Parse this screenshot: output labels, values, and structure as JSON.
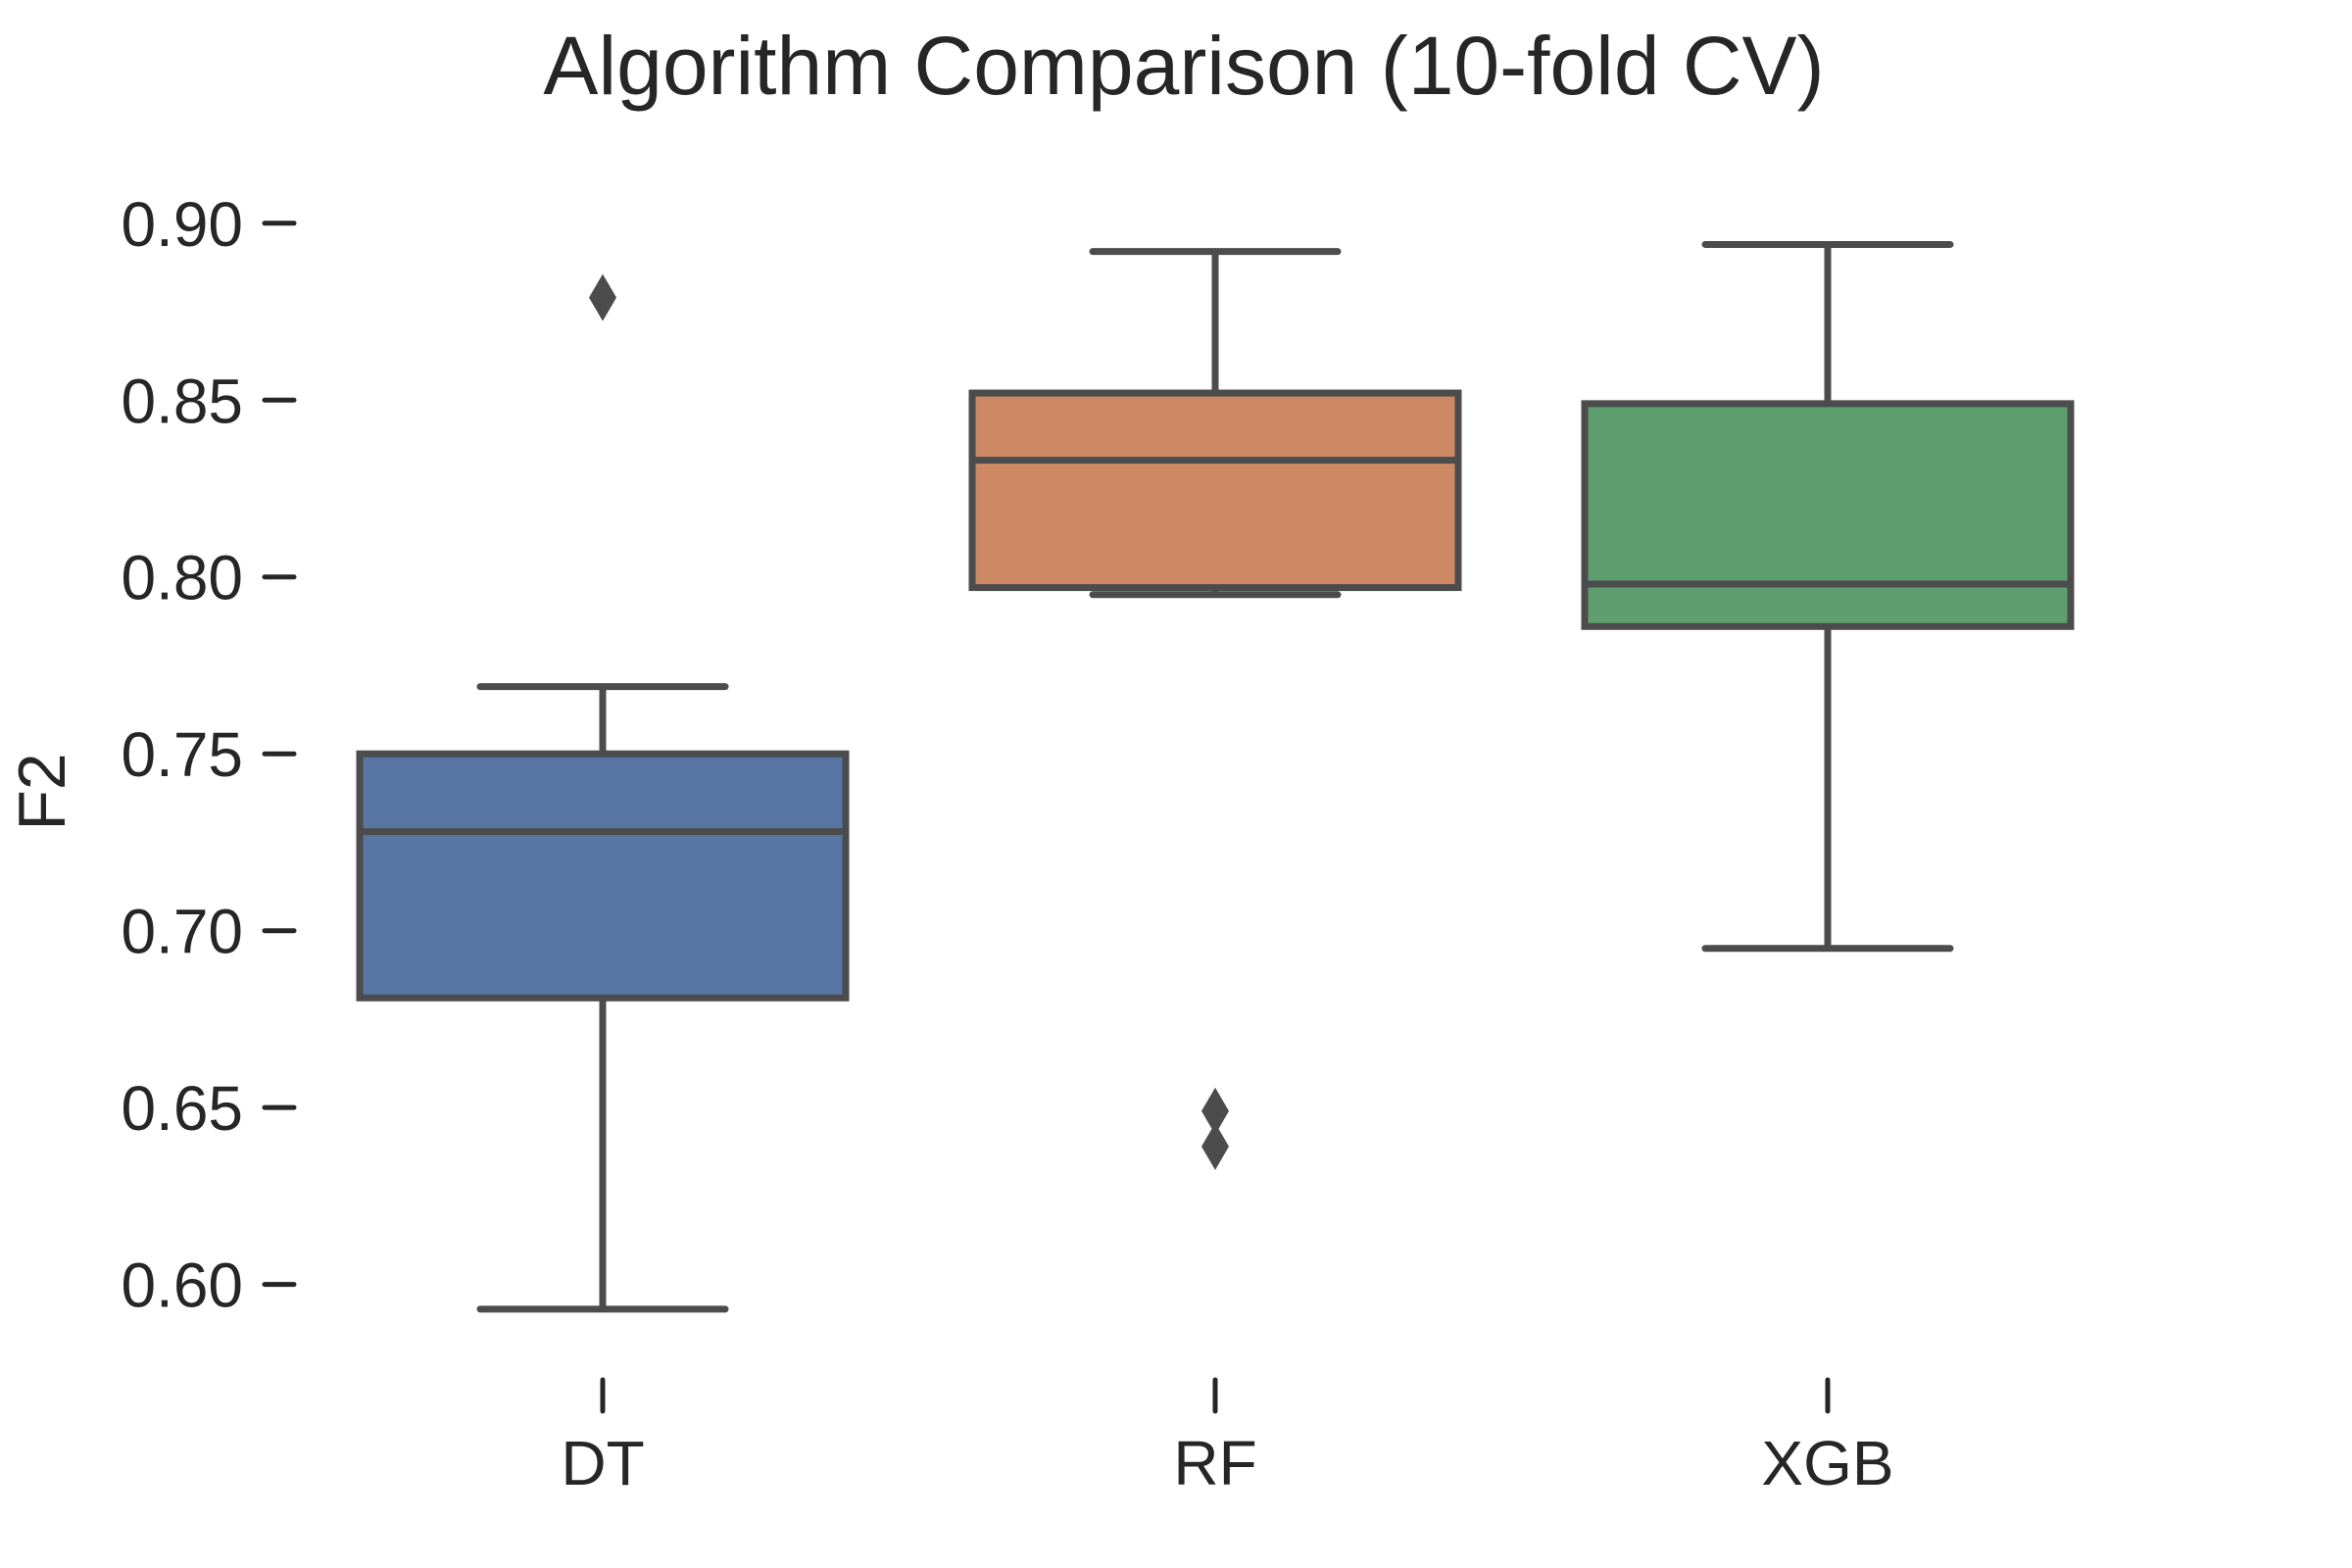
{
  "chart_data": {
    "type": "box",
    "title": "Algorithm Comparison (10-fold CV)",
    "xlabel": "",
    "ylabel": "F2",
    "categories": [
      "DT",
      "RF",
      "XGB"
    ],
    "ylim": [
      0.583,
      0.921
    ],
    "yticks": [
      0.6,
      0.65,
      0.7,
      0.75,
      0.8,
      0.85,
      0.9
    ],
    "ytick_labels": [
      "0.60",
      "0.65",
      "0.70",
      "0.75",
      "0.80",
      "0.85",
      "0.90"
    ],
    "grid": false,
    "legend": "none",
    "boxes": [
      {
        "category": "DT",
        "color": "#5975a4",
        "whisker_low": 0.593,
        "q1": 0.681,
        "median": 0.728,
        "q3": 0.75,
        "whisker_high": 0.769,
        "outliers": [
          0.879
        ]
      },
      {
        "category": "RF",
        "color": "#cc8963",
        "whisker_low": 0.795,
        "q1": 0.797,
        "median": 0.833,
        "q3": 0.852,
        "whisker_high": 0.892,
        "outliers": [
          0.649,
          0.639
        ]
      },
      {
        "category": "XGB",
        "color": "#5f9e6e",
        "whisker_low": 0.695,
        "q1": 0.786,
        "median": 0.798,
        "q3": 0.849,
        "whisker_high": 0.894,
        "outliers": []
      }
    ],
    "line_color": "#4c4c4c",
    "text_color": "#262626"
  }
}
